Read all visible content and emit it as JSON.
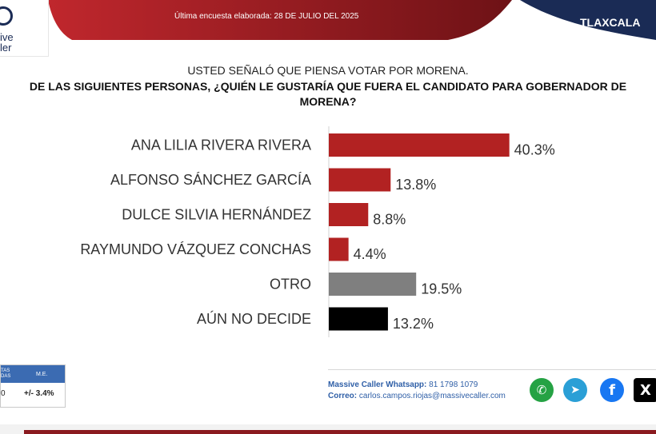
{
  "header": {
    "survey_line": "Última encuesta elaborada: 28 DE JULIO DEL 2025",
    "region": "TLAXCALA",
    "logo_line1": "ive",
    "logo_line2": "ler",
    "colors": {
      "red": "#a31d24",
      "navy": "#1a2b55"
    }
  },
  "question": {
    "line1": "USTED SEÑALÓ QUE PIENSA VOTAR POR MORENA.",
    "line2": "DE LAS SIGUIENTES PERSONAS, ¿QUIÉN LE GUSTARÍA QUE FUERA EL CANDIDATO PARA GOBERNADOR DE MORENA?"
  },
  "chart_data": {
    "type": "bar",
    "orientation": "horizontal",
    "categories": [
      "ANA LILIA RIVERA RIVERA",
      "ALFONSO SÁNCHEZ GARCÍA",
      "DULCE SILVIA HERNÁNDEZ",
      "RAYMUNDO VÁZQUEZ CONCHAS",
      "OTRO",
      "AÚN NO DECIDE"
    ],
    "values": [
      40.3,
      13.8,
      8.8,
      4.4,
      19.5,
      13.2
    ],
    "labels": [
      "40.3%",
      "13.8%",
      "8.8%",
      "4.4%",
      "19.5%",
      "13.2%"
    ],
    "colors": [
      "#b22222",
      "#b22222",
      "#b22222",
      "#b22222",
      "#7f7f7f",
      "#000000"
    ],
    "xlim": [
      0,
      100
    ],
    "grid": false
  },
  "footer": {
    "table_head1": "TAS\nDAS",
    "table_head2": "M.E.",
    "table_val1": "0",
    "table_val2": "+/- 3.4%",
    "whatsapp_label": "Massive Caller Whatsapp:",
    "whatsapp_number": "81 1798 1079",
    "email_label": "Correo:",
    "email": "carlos.campos.riojas@massivecaller.com",
    "icons": [
      "whatsapp-icon",
      "telegram-icon",
      "facebook-icon",
      "x-icon"
    ]
  }
}
